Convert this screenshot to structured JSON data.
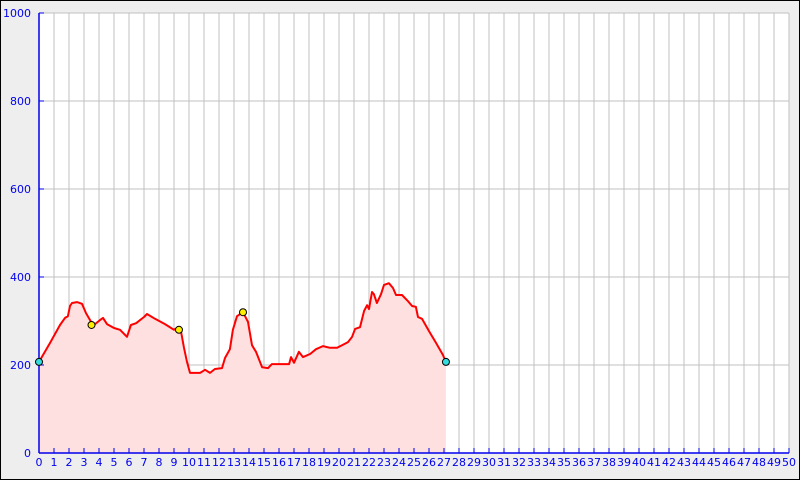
{
  "chart_data": {
    "type": "area",
    "title": "",
    "xlabel": "",
    "ylabel": "",
    "xlim": [
      0,
      50
    ],
    "ylim": [
      0,
      1000
    ],
    "x_ticks": [
      0,
      1,
      2,
      3,
      4,
      5,
      6,
      7,
      8,
      9,
      10,
      11,
      12,
      13,
      14,
      15,
      16,
      17,
      18,
      19,
      20,
      21,
      22,
      23,
      24,
      25,
      26,
      27,
      28,
      29,
      30,
      31,
      32,
      33,
      34,
      35,
      36,
      37,
      38,
      39,
      40,
      41,
      42,
      43,
      44,
      45,
      46,
      47,
      48,
      49,
      50
    ],
    "y_ticks": [
      0,
      200,
      400,
      600,
      800,
      1000
    ],
    "grid": true,
    "colors": {
      "line": "#ff0000",
      "fill": "#ffe0e0",
      "axis": "#0000ee",
      "grid": "#c0c0c0",
      "endpoint_marker": "#33dddd",
      "waypoint_marker": "#ffee00"
    },
    "series": [
      {
        "x": [
          0,
          0.73,
          1.4,
          1.73,
          1.93,
          2.07,
          2.2,
          2.53,
          2.87,
          3.13,
          3.47,
          3.73,
          4.07,
          4.27,
          4.53,
          5.0,
          5.4,
          5.87,
          6.13,
          6.47,
          7.0,
          7.2,
          7.73,
          8.4,
          9.0,
          9.27,
          9.47,
          9.67,
          9.87,
          10.07,
          10.73,
          11.07,
          11.4,
          11.73,
          12.2,
          12.4,
          12.73,
          12.93,
          13.2,
          13.6,
          13.93,
          14.2,
          14.47,
          14.87,
          15.27,
          15.53,
          16.07,
          16.67,
          16.8,
          17.0,
          17.33,
          17.6,
          18.07,
          18.47,
          18.93,
          19.4,
          19.87,
          20.2,
          20.6,
          20.87,
          21.07,
          21.4,
          21.67,
          21.87,
          22.0,
          22.2,
          22.33,
          22.53,
          22.8,
          23.0,
          23.33,
          23.6,
          23.8,
          24.2,
          24.6,
          24.87,
          25.13,
          25.27,
          25.53,
          26.0,
          26.47,
          26.93,
          27.13
        ],
        "y": [
          207,
          250,
          291,
          307,
          311,
          334,
          341,
          343,
          339,
          318,
          298,
          293,
          302,
          307,
          293,
          284,
          280,
          264,
          291,
          295,
          309,
          316,
          305,
          293,
          280,
          286,
          275,
          239,
          207,
          182,
          182,
          189,
          182,
          191,
          193,
          216,
          236,
          280,
          311,
          320,
          298,
          245,
          230,
          195,
          193,
          202,
          202,
          202,
          218,
          205,
          230,
          218,
          225,
          236,
          243,
          239,
          239,
          245,
          252,
          264,
          282,
          286,
          323,
          336,
          327,
          366,
          361,
          341,
          361,
          382,
          386,
          375,
          359,
          359,
          345,
          334,
          332,
          309,
          305,
          277,
          250,
          223,
          207
        ]
      }
    ],
    "markers": [
      {
        "x": 0,
        "y": 207,
        "type": "endpoint"
      },
      {
        "x": 3.5,
        "y": 291,
        "type": "waypoint"
      },
      {
        "x": 9.33,
        "y": 280,
        "type": "waypoint"
      },
      {
        "x": 13.6,
        "y": 320,
        "type": "waypoint"
      },
      {
        "x": 27.13,
        "y": 207,
        "type": "endpoint"
      }
    ]
  }
}
